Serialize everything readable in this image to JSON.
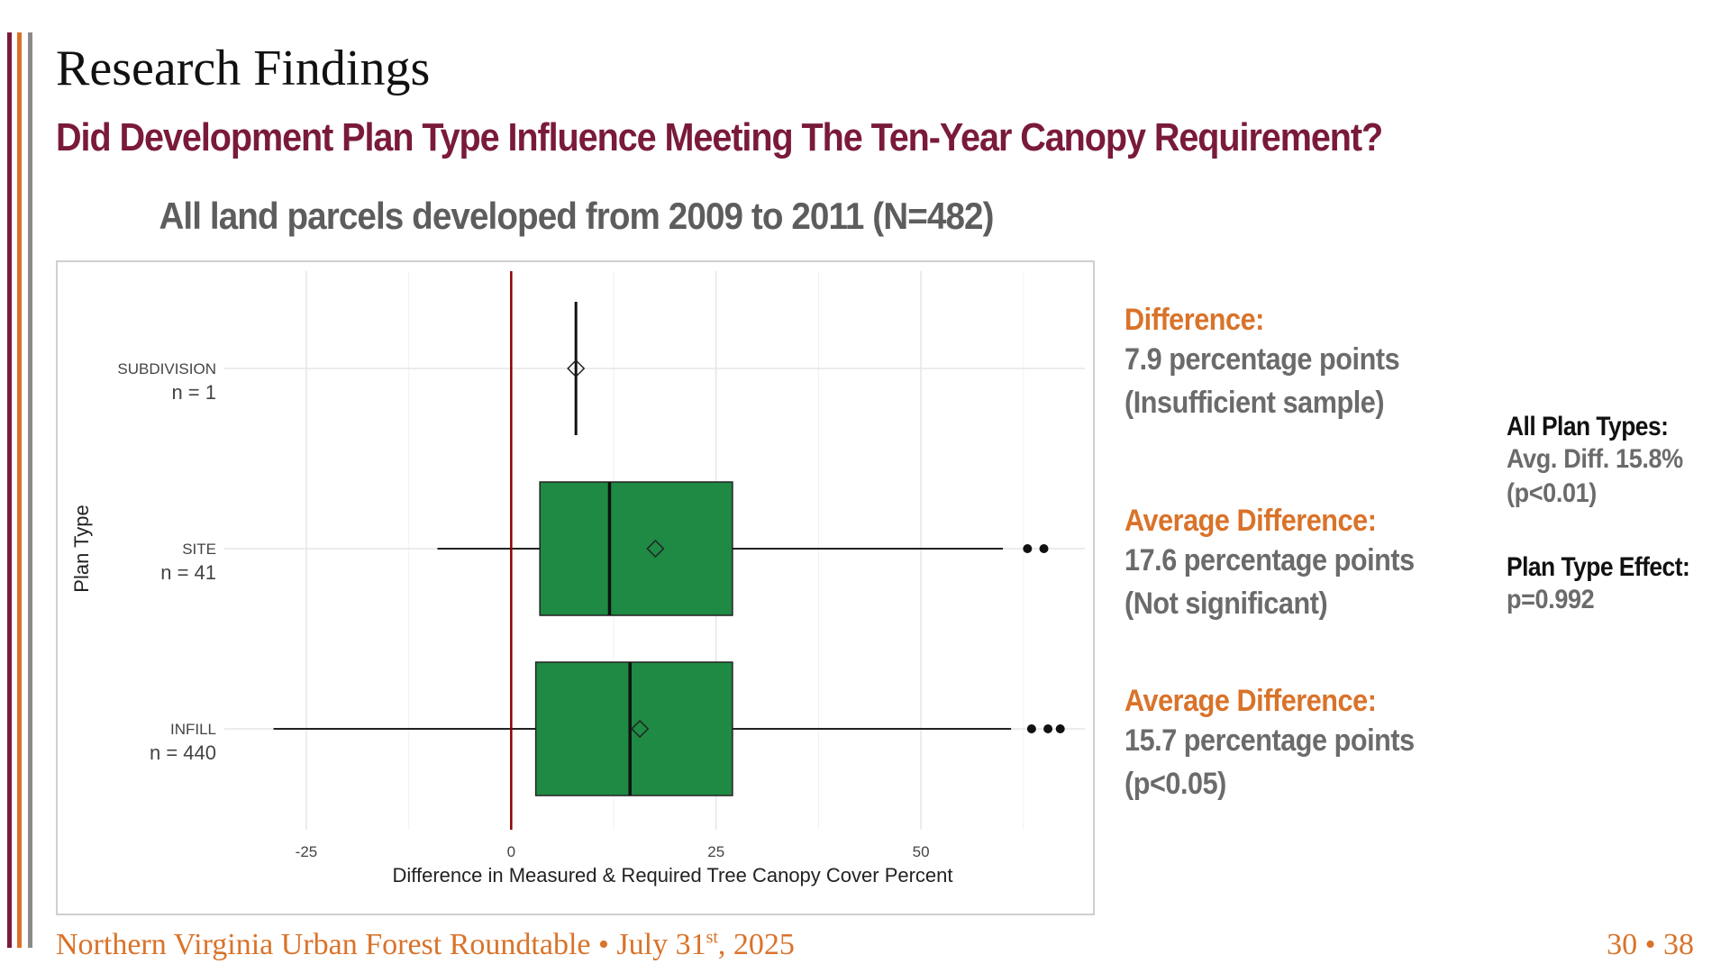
{
  "slide": {
    "title": "Research Findings",
    "subtitle": "Did Development Plan Type Influence Meeting The Ten-Year Canopy Requirement?",
    "chart_heading": "All land parcels developed from 2009 to 2011 (N=482)"
  },
  "annotations": [
    {
      "label": "Difference:",
      "line1": "7.9 percentage points",
      "line2": "(Insufficient sample)"
    },
    {
      "label": "Average Difference:",
      "line1": "17.6 percentage points",
      "line2": "(Not significant)"
    },
    {
      "label": "Average Difference:",
      "line1": "15.7 percentage points",
      "line2": "(p<0.05)"
    }
  ],
  "summary": {
    "all_heading": "All Plan Types:",
    "all_line1": "Avg. Diff. 15.8%",
    "all_line2": "(p<0.01)",
    "effect_heading": "Plan Type Effect:",
    "effect_value": "p=0.992"
  },
  "footer": {
    "text_before": "Northern Virginia Urban Forest Roundtable • July 31",
    "superscript": "st",
    "text_after": ", 2025",
    "page": "30 • 38"
  },
  "colors": {
    "bar_maroon": "#7a1a3a",
    "bar_orange": "#d9732a",
    "bar_gray": "#8a8a8a",
    "box_fill": "#1e8a44",
    "reference_line": "#8b0000"
  },
  "chart_data": {
    "type": "boxplot",
    "orientation": "horizontal",
    "xlabel": "Difference in Measured & Required Tree Canopy Cover Percent",
    "ylabel": "Plan Type",
    "xlim": [
      -35,
      70
    ],
    "xticks": [
      -25,
      0,
      25,
      50
    ],
    "reference_line_x": 0,
    "grid": true,
    "categories": [
      {
        "name": "SUBDIVISION",
        "n_label": "n = 1",
        "min": 7.9,
        "q1": 7.9,
        "median": 7.9,
        "q3": 7.9,
        "max": 7.9,
        "mean": 7.9,
        "outliers": []
      },
      {
        "name": "SITE",
        "n_label": "n = 41",
        "min": -9,
        "q1": 3.5,
        "median": 12,
        "q3": 27,
        "max": 60,
        "mean": 17.6,
        "outliers": [
          63,
          65
        ]
      },
      {
        "name": "INFILL",
        "n_label": "n = 440",
        "min": -29,
        "q1": 3,
        "median": 14.5,
        "q3": 27,
        "max": 61,
        "mean": 15.7,
        "outliers": [
          63.5,
          65.5,
          67
        ]
      }
    ]
  }
}
